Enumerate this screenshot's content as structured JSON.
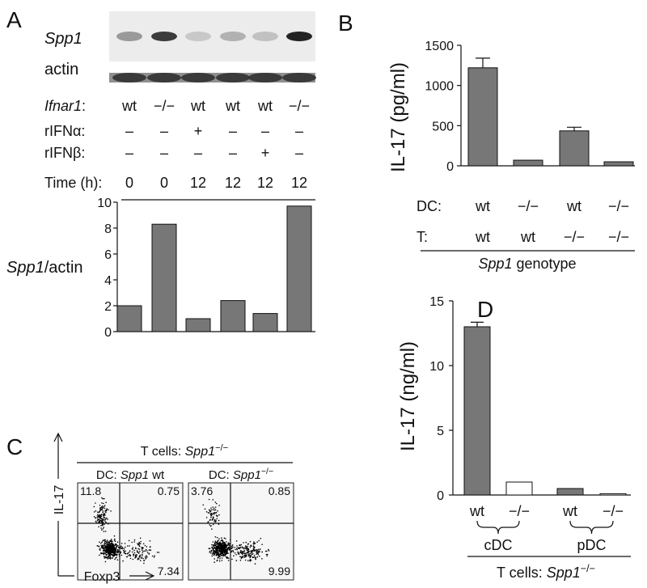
{
  "panel_labels": [
    "A",
    "B",
    "C",
    "D"
  ],
  "blot": {
    "rows": [
      [
        {
          "t": "Spp1",
          "i": true
        }
      ],
      [
        {
          "t": "actin"
        }
      ]
    ]
  },
  "chart_data": [
    {
      "type": "bar",
      "ylabel": [
        {
          "t": "Spp1",
          "i": true
        },
        {
          "t": "/actin"
        }
      ],
      "conditions": [
        {
          "label": [
            {
              "t": "Ifnar1",
              "i": true
            },
            {
              "t": ":"
            }
          ],
          "cells": [
            "wt",
            "−/−",
            "wt",
            "wt",
            "wt",
            "−/−"
          ]
        },
        {
          "label": [
            {
              "t": "rIFNα:"
            }
          ],
          "cells": [
            "–",
            "–",
            "+",
            "–",
            "–",
            "–"
          ]
        },
        {
          "label": [
            {
              "t": "rIFNβ:"
            }
          ],
          "cells": [
            "–",
            "–",
            "–",
            "–",
            "+",
            "–"
          ]
        },
        {
          "label": [
            {
              "t": "Time (h):"
            }
          ],
          "cells": [
            0,
            0,
            12,
            12,
            12,
            12
          ]
        }
      ],
      "values": [
        2.0,
        8.3,
        1.0,
        2.4,
        1.4,
        9.7
      ],
      "color": "#777777",
      "ylim": [
        0,
        10
      ],
      "yticks": [
        0,
        2,
        4,
        6,
        8,
        10
      ]
    },
    {
      "type": "bar",
      "ylabel": [
        {
          "t": "IL-17 (pg/ml)"
        }
      ],
      "rows": [
        {
          "label": [
            {
              "t": "DC:"
            }
          ],
          "cells": [
            "wt",
            "−/−",
            "wt",
            "−/−"
          ]
        },
        {
          "label": [
            {
              "t": "T:"
            }
          ],
          "cells": [
            "wt",
            "wt",
            "−/−",
            "−/−"
          ]
        }
      ],
      "xlabel": [
        {
          "t": "Spp1",
          "i": true
        },
        {
          "t": " genotype"
        }
      ],
      "values": [
        1220,
        70,
        435,
        50
      ],
      "errors": [
        120,
        null,
        45,
        null
      ],
      "color": "#777777",
      "ylim": [
        0,
        1500
      ],
      "yticks": [
        0,
        500,
        1000,
        1500
      ]
    },
    {
      "type": "bar",
      "ylabel": [
        {
          "t": "IL-17 (ng/ml)"
        }
      ],
      "categories": [
        "wt",
        "−/−",
        "wt",
        "−/−"
      ],
      "groups": [
        "cDC",
        "pDC"
      ],
      "xlabel": [
        {
          "t": "T cells: "
        },
        {
          "t": "Spp1",
          "i": true
        },
        {
          "t": "−/−",
          "sup": true
        }
      ],
      "values": [
        13.0,
        1.0,
        0.5,
        0.1
      ],
      "errors": [
        0.35,
        null,
        null,
        null
      ],
      "colors": [
        "#777777",
        "#ffffff",
        "#777777",
        "#ffffff"
      ],
      "ylim": [
        0,
        15
      ],
      "yticks": [
        0,
        5,
        10,
        15
      ]
    }
  ],
  "flow": {
    "title": [
      {
        "t": "T cells: "
      },
      {
        "t": "Spp1",
        "i": true
      },
      {
        "t": "−/−",
        "sup": true
      }
    ],
    "y_axis": "IL-17",
    "x_axis": "Foxp3",
    "plots": [
      {
        "title": [
          {
            "t": "DC: "
          },
          {
            "t": "Spp1",
            "i": true
          },
          {
            "t": " wt"
          }
        ],
        "quadrants": [
          11.8,
          0.75,
          7.34
        ]
      },
      {
        "title": [
          {
            "t": "DC: "
          },
          {
            "t": "Spp1",
            "i": true
          },
          {
            "t": "−/−",
            "sup": true
          }
        ],
        "quadrants": [
          3.76,
          0.85,
          9.99
        ]
      }
    ]
  }
}
